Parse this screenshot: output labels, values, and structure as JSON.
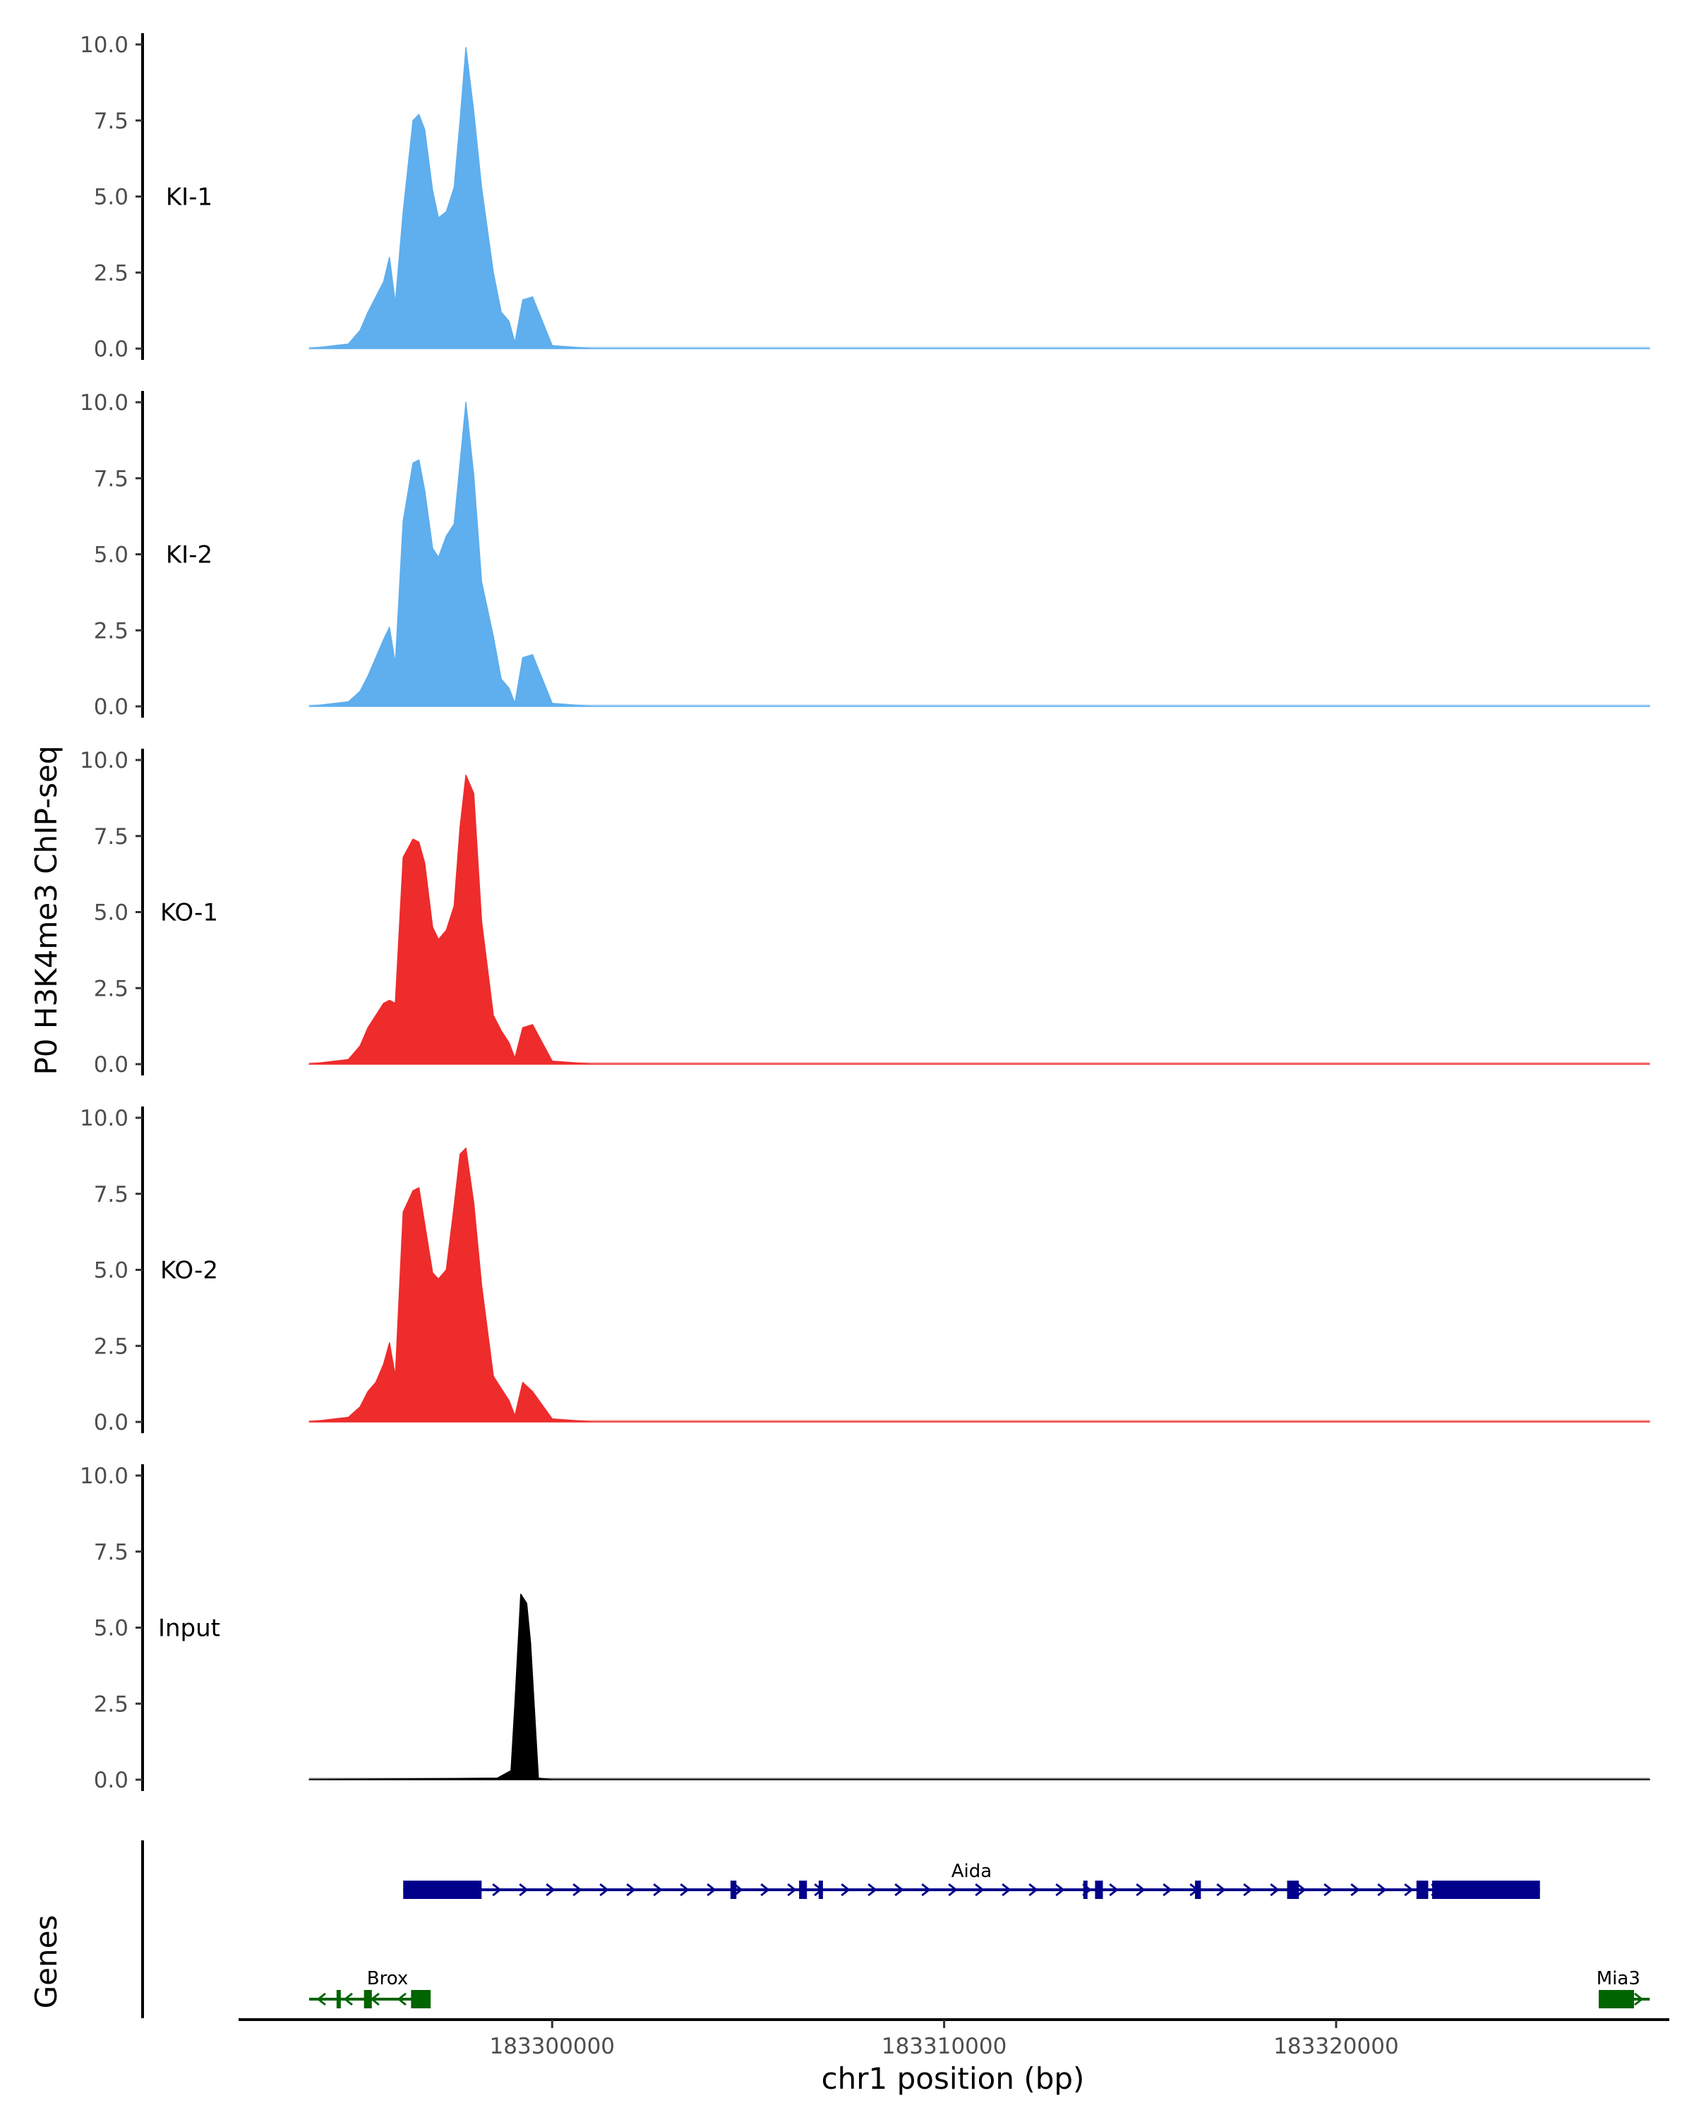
{
  "colors": {
    "KI": "#5faeed",
    "KO": "#ee2c2c",
    "Input": "#000000",
    "gene_plus": "#00008b",
    "gene_minus": "#006400"
  },
  "chart_data": {
    "type": "area",
    "ylabel": "P0 H3K4me3 ChIP-seq",
    "xlabel": "chr1 position (bp)",
    "ylim": [
      0,
      10
    ],
    "yticks": [
      "0.0",
      "2.5",
      "5.0",
      "7.5",
      "10.0"
    ],
    "xlim": [
      183292000,
      183328500
    ],
    "xticks": [
      183300000,
      183310000,
      183320000
    ],
    "xtick_labels": [
      "183300000",
      "183310000",
      "183320000"
    ],
    "grid": false,
    "tracks": [
      {
        "name": "KI-1",
        "color": "#5faeed",
        "x": [
          183293800,
          183294800,
          183295100,
          183295300,
          183295500,
          183295700,
          183295850,
          183296000,
          183296200,
          183296450,
          183296600,
          183296750,
          183296950,
          183297100,
          183297300,
          183297500,
          183297650,
          183297800,
          183298000,
          183298200,
          183298500,
          183298700,
          183298900,
          183299050,
          183299250,
          183299500,
          183300000,
          183300500,
          183301000,
          183328000
        ],
        "y": [
          0,
          0.15,
          0.6,
          1.2,
          1.7,
          2.2,
          3.0,
          1.5,
          4.5,
          7.5,
          7.7,
          7.2,
          5.2,
          4.3,
          4.5,
          5.3,
          7.5,
          9.9,
          7.8,
          5.3,
          2.5,
          1.2,
          0.9,
          0.2,
          1.6,
          1.7,
          0.1,
          0.05,
          0,
          0
        ]
      },
      {
        "name": "KI-2",
        "color": "#5faeed",
        "x": [
          183293800,
          183294800,
          183295100,
          183295300,
          183295500,
          183295700,
          183295850,
          183296000,
          183296200,
          183296450,
          183296600,
          183296750,
          183296950,
          183297100,
          183297300,
          183297500,
          183297650,
          183297800,
          183298000,
          183298200,
          183298500,
          183298700,
          183298900,
          183299050,
          183299250,
          183299500,
          183300000,
          183300500,
          183301000,
          183328000
        ],
        "y": [
          0,
          0.15,
          0.5,
          1.0,
          1.6,
          2.2,
          2.6,
          1.4,
          6.1,
          8.0,
          8.1,
          7.1,
          5.2,
          4.9,
          5.6,
          6.0,
          8.0,
          10.0,
          7.6,
          4.1,
          2.3,
          0.9,
          0.6,
          0.1,
          1.6,
          1.7,
          0.1,
          0.05,
          0,
          0
        ]
      },
      {
        "name": "KO-1",
        "color": "#ee2c2c",
        "x": [
          183293800,
          183294800,
          183295100,
          183295300,
          183295500,
          183295700,
          183295850,
          183296000,
          183296200,
          183296450,
          183296600,
          183296750,
          183296950,
          183297100,
          183297300,
          183297500,
          183297650,
          183297800,
          183298000,
          183298200,
          183298500,
          183298700,
          183298900,
          183299050,
          183299250,
          183299500,
          183300000,
          183300500,
          183301000,
          183328000
        ],
        "y": [
          0,
          0.15,
          0.6,
          1.2,
          1.6,
          2.0,
          2.1,
          2.0,
          6.8,
          7.4,
          7.3,
          6.6,
          4.5,
          4.1,
          4.4,
          5.2,
          7.8,
          9.5,
          8.9,
          4.7,
          1.6,
          1.1,
          0.7,
          0.2,
          1.2,
          1.3,
          0.1,
          0.05,
          0,
          0
        ]
      },
      {
        "name": "KO-2",
        "color": "#ee2c2c",
        "x": [
          183293800,
          183294800,
          183295100,
          183295300,
          183295500,
          183295700,
          183295850,
          183296000,
          183296200,
          183296450,
          183296600,
          183296750,
          183296950,
          183297100,
          183297300,
          183297500,
          183297650,
          183297800,
          183298000,
          183298200,
          183298500,
          183298700,
          183298900,
          183299050,
          183299250,
          183299500,
          183300000,
          183300500,
          183301000,
          183328000
        ],
        "y": [
          0,
          0.15,
          0.5,
          1.0,
          1.3,
          1.9,
          2.6,
          1.5,
          6.9,
          7.6,
          7.7,
          6.5,
          4.9,
          4.7,
          5.0,
          7.1,
          8.8,
          9.0,
          7.2,
          4.5,
          1.5,
          1.1,
          0.7,
          0.2,
          1.3,
          1.0,
          0.1,
          0.05,
          0,
          0
        ]
      },
      {
        "name": "Input",
        "color": "#000000",
        "x": [
          183293800,
          183298600,
          183298950,
          183299050,
          183299200,
          183299350,
          183299450,
          183299650,
          183300000,
          183328000
        ],
        "y": [
          0,
          0.05,
          0.3,
          2.5,
          6.1,
          5.8,
          4.5,
          0.05,
          0,
          0
        ]
      }
    ]
  },
  "genes": {
    "title": "Genes",
    "items": [
      {
        "name": "Aida",
        "strand": "+",
        "color": "#00008b",
        "start": 183296200,
        "end": 183325200,
        "exons": [
          [
            183296200,
            183298200
          ],
          [
            183304550,
            183304700
          ],
          [
            183306300,
            183306500
          ],
          [
            183306800,
            183306870
          ],
          [
            183313550,
            183313650
          ],
          [
            183313850,
            183314050
          ],
          [
            183316400,
            183316550
          ],
          [
            183318750,
            183319050
          ],
          [
            183322050,
            183322350
          ],
          [
            183322450,
            183325200
          ]
        ]
      },
      {
        "name": "Brox",
        "strand": "-",
        "color": "#006400",
        "start": 183293800,
        "end": 183296900,
        "exons": [
          [
            183294500,
            183294580
          ],
          [
            183295200,
            183295400
          ],
          [
            183296400,
            183296900
          ]
        ]
      },
      {
        "name": "Mia3",
        "strand": "+",
        "color": "#006400",
        "start": 183326700,
        "end": 183328000,
        "exons": [
          [
            183326700,
            183327600
          ]
        ]
      }
    ]
  }
}
